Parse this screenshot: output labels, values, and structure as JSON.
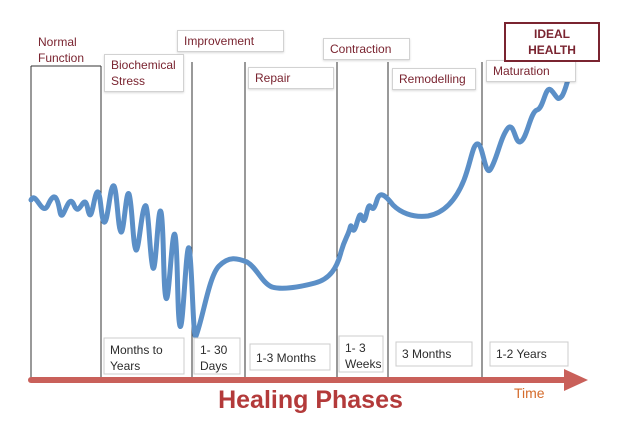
{
  "title": "Healing Phases",
  "axis_label": "Time",
  "ideal_health": "IDEAL HEALTH",
  "phases": [
    {
      "name": "Normal Function",
      "duration": ""
    },
    {
      "name": "Biochemical Stress",
      "duration": "Months to Years"
    },
    {
      "name": "Improvement",
      "duration": "1- 30 Days"
    },
    {
      "name": "Repair",
      "duration": "1-3 Months"
    },
    {
      "name": "Contraction",
      "duration": "1- 3 Weeks"
    },
    {
      "name": "Remodelling",
      "duration": "3 Months"
    },
    {
      "name": "Maturation",
      "duration": "1-2 Years"
    }
  ],
  "colors": {
    "curve": "#5b8fc7",
    "axis_arrow": "#c9605a",
    "title": "#b33a3a",
    "label_text": "#7a2430",
    "time_label": "#d46b2b"
  }
}
